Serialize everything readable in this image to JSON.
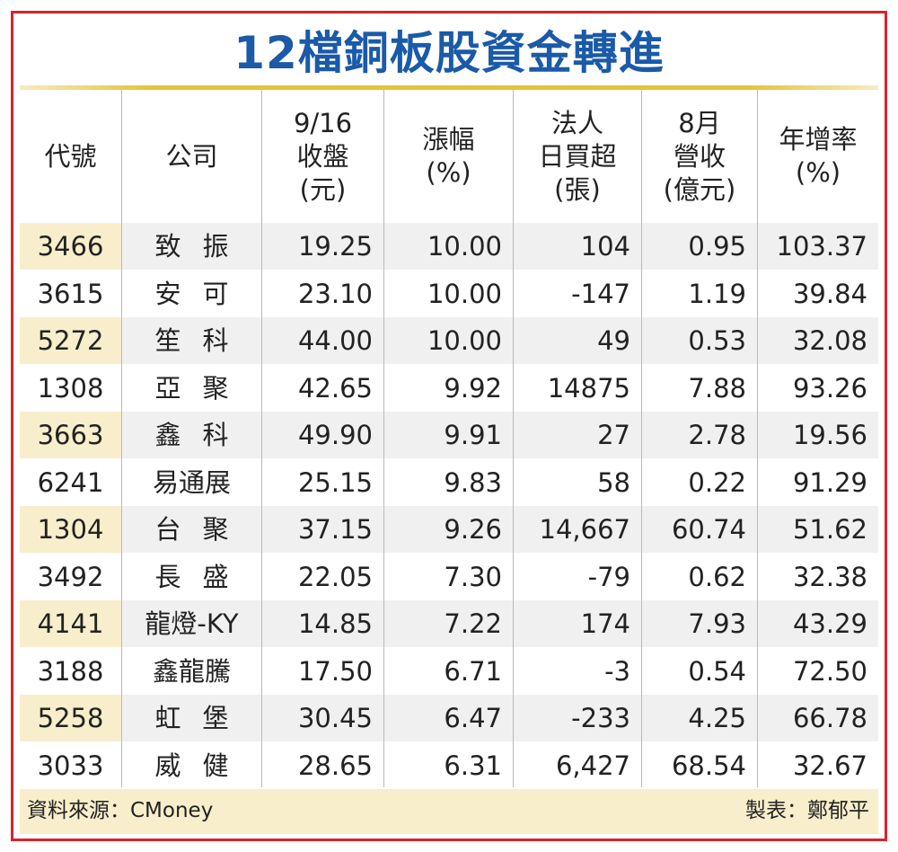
{
  "title": "12檔銅板股資金轉進",
  "colors": {
    "title": "#1a5aa8",
    "frame": "#d9232a",
    "accent_bar": "#e3c43a",
    "code_highlight": "#f8eecb",
    "row_alt": "#f0f0f0"
  },
  "chart_data": {
    "type": "table",
    "columns": [
      {
        "key": "code",
        "lines": [
          "代號"
        ]
      },
      {
        "key": "company",
        "lines": [
          "公司"
        ]
      },
      {
        "key": "close",
        "lines": [
          "9/16",
          "收盤",
          "(元)"
        ]
      },
      {
        "key": "change",
        "lines": [
          "漲幅",
          "(%)"
        ]
      },
      {
        "key": "inst_buy",
        "lines": [
          "法人",
          "日買超",
          "(張)"
        ]
      },
      {
        "key": "revenue",
        "lines": [
          "8月",
          "營收",
          "(億元)"
        ]
      },
      {
        "key": "yoy",
        "lines": [
          "年增率",
          "(%)"
        ]
      }
    ],
    "rows": [
      {
        "code": "3466",
        "company": "致振",
        "close": "19.25",
        "change": "10.00",
        "inst_buy": "104",
        "revenue": "0.95",
        "yoy": "103.37"
      },
      {
        "code": "3615",
        "company": "安可",
        "close": "23.10",
        "change": "10.00",
        "inst_buy": "-147",
        "revenue": "1.19",
        "yoy": "39.84"
      },
      {
        "code": "5272",
        "company": "笙科",
        "close": "44.00",
        "change": "10.00",
        "inst_buy": "49",
        "revenue": "0.53",
        "yoy": "32.08"
      },
      {
        "code": "1308",
        "company": "亞聚",
        "close": "42.65",
        "change": "9.92",
        "inst_buy": "14875",
        "revenue": "7.88",
        "yoy": "93.26"
      },
      {
        "code": "3663",
        "company": "鑫科",
        "close": "49.90",
        "change": "9.91",
        "inst_buy": "27",
        "revenue": "2.78",
        "yoy": "19.56"
      },
      {
        "code": "6241",
        "company": "易通展",
        "close": "25.15",
        "change": "9.83",
        "inst_buy": "58",
        "revenue": "0.22",
        "yoy": "91.29"
      },
      {
        "code": "1304",
        "company": "台聚",
        "close": "37.15",
        "change": "9.26",
        "inst_buy": "14,667",
        "revenue": "60.74",
        "yoy": "51.62"
      },
      {
        "code": "3492",
        "company": "長盛",
        "close": "22.05",
        "change": "7.30",
        "inst_buy": "-79",
        "revenue": "0.62",
        "yoy": "32.38"
      },
      {
        "code": "4141",
        "company": "龍燈-KY",
        "close": "14.85",
        "change": "7.22",
        "inst_buy": "174",
        "revenue": "7.93",
        "yoy": "43.29"
      },
      {
        "code": "3188",
        "company": "鑫龍騰",
        "close": "17.50",
        "change": "6.71",
        "inst_buy": "-3",
        "revenue": "0.54",
        "yoy": "72.50"
      },
      {
        "code": "5258",
        "company": "虹堡",
        "close": "30.45",
        "change": "6.47",
        "inst_buy": "-233",
        "revenue": "4.25",
        "yoy": "66.78"
      },
      {
        "code": "3033",
        "company": "威健",
        "close": "28.65",
        "change": "6.31",
        "inst_buy": "6,427",
        "revenue": "68.54",
        "yoy": "32.67"
      }
    ]
  },
  "footer": {
    "source": "資料來源：CMoney",
    "maker": "製表：鄭郁平"
  }
}
